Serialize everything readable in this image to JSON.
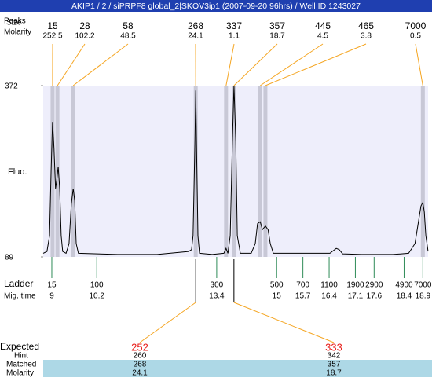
{
  "title": "AKIP1 / 2 / siPRPF8 global_2|SKOV3ip1 (2007-09-20 96hrs) / Well ID 1243027",
  "chart_data": {
    "type": "electropherogram",
    "y_label": "Fluo.",
    "ylim": [
      89,
      372
    ],
    "yticks": [
      89,
      372
    ],
    "xlim": [
      8.77,
      19.04
    ],
    "color": "#000000",
    "x": [
      8.77,
      8.87,
      8.94,
      8.98,
      9.02,
      9.06,
      9.1,
      9.13,
      9.17,
      9.21,
      9.25,
      9.29,
      9.38,
      9.46,
      9.52,
      9.57,
      9.61,
      9.65,
      9.71,
      10.76,
      11.81,
      12.65,
      12.73,
      12.77,
      12.82,
      12.84,
      12.86,
      12.9,
      12.94,
      13.28,
      13.59,
      13.65,
      13.7,
      13.76,
      13.82,
      13.86,
      13.91,
      13.95,
      14.03,
      14.32,
      14.43,
      14.49,
      14.56,
      14.62,
      14.7,
      14.77,
      14.83,
      14.91,
      16.0,
      16.42,
      16.59,
      16.67,
      16.76,
      17.26,
      18.1,
      18.52,
      18.69,
      18.79,
      18.85,
      18.9,
      18.94,
      18.98,
      19.04
    ],
    "values": [
      95,
      98,
      124,
      228,
      312,
      267,
      202,
      215,
      238,
      202,
      124,
      98,
      95,
      111,
      176,
      202,
      182,
      111,
      95,
      93,
      93,
      98,
      101,
      124,
      280,
      364,
      280,
      124,
      95,
      93,
      95,
      103,
      95,
      124,
      280,
      372,
      280,
      124,
      95,
      95,
      111,
      144,
      147,
      134,
      140,
      134,
      111,
      95,
      95,
      95,
      103,
      101,
      94,
      93,
      93,
      95,
      111,
      150,
      173,
      179,
      163,
      124,
      98
    ],
    "peaks": {
      "peaks_label": "Peaks",
      "size_label": "Size",
      "molarity_label": "Molarity",
      "sizes": [
        15,
        28,
        58,
        268,
        337,
        357,
        445,
        465,
        7000
      ],
      "molarities": [
        252.5,
        102.2,
        48.5,
        24.1,
        1.1,
        18.7,
        4.5,
        3.8,
        0.5
      ],
      "times": [
        9.02,
        9.15,
        9.57,
        12.84,
        13.65,
        13.86,
        14.56,
        14.7,
        18.9
      ]
    },
    "ladder": {
      "label": "Ladder",
      "time_label": "Mig. time",
      "sizes": [
        15,
        100,
        300,
        500,
        700,
        1100,
        1900,
        2900,
        4900,
        7000
      ],
      "times": [
        9,
        10.2,
        13.4,
        15,
        15.7,
        16.4,
        17.1,
        17.6,
        18.4,
        18.9
      ]
    },
    "expected": {
      "label": "Expected",
      "hint_label": "Hint",
      "matched_label": "Matched",
      "molarity_label": "Molarity",
      "expected": [
        252,
        333
      ],
      "hint": [
        260,
        342
      ],
      "matched": [
        268,
        357
      ],
      "molarity": [
        24.1,
        18.7
      ]
    }
  }
}
